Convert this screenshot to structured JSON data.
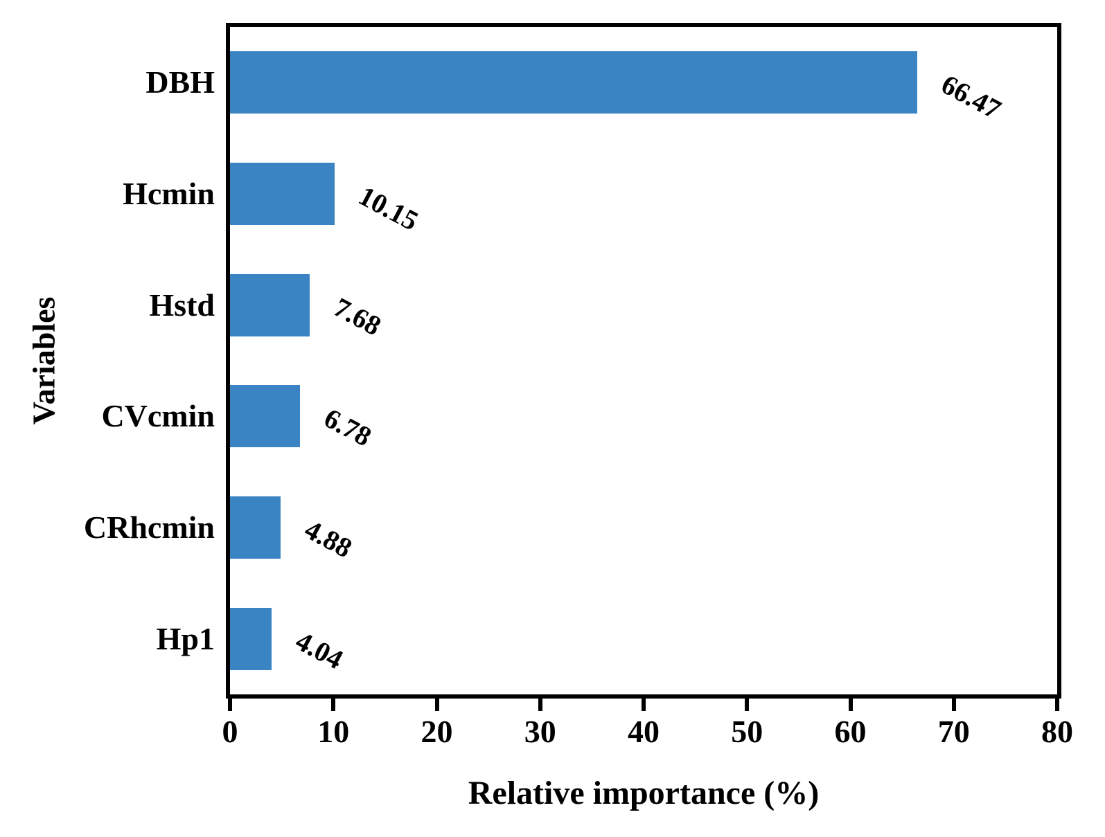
{
  "chart_data": {
    "type": "bar",
    "orientation": "horizontal",
    "title": "",
    "xlabel": "Relative importance (%)",
    "ylabel": "Variables",
    "categories": [
      "DBH",
      "Hcmin",
      "Hstd",
      "CVcmin",
      "CRhcmin",
      "Hp1"
    ],
    "values": [
      66.47,
      10.15,
      7.68,
      6.78,
      4.88,
      4.04
    ],
    "value_labels": [
      "66.47",
      "10.15",
      "7.68",
      "6.78",
      "4.88",
      "4.04"
    ],
    "xlim": [
      0,
      80
    ],
    "xticks": [
      0,
      10,
      20,
      30,
      40,
      50,
      60,
      70,
      80
    ],
    "grid": false,
    "legend": "none",
    "bar_color": "#3a84c4",
    "axis_color": "#000000",
    "text_color": "#000000",
    "value_label_rotation_deg": 28
  }
}
